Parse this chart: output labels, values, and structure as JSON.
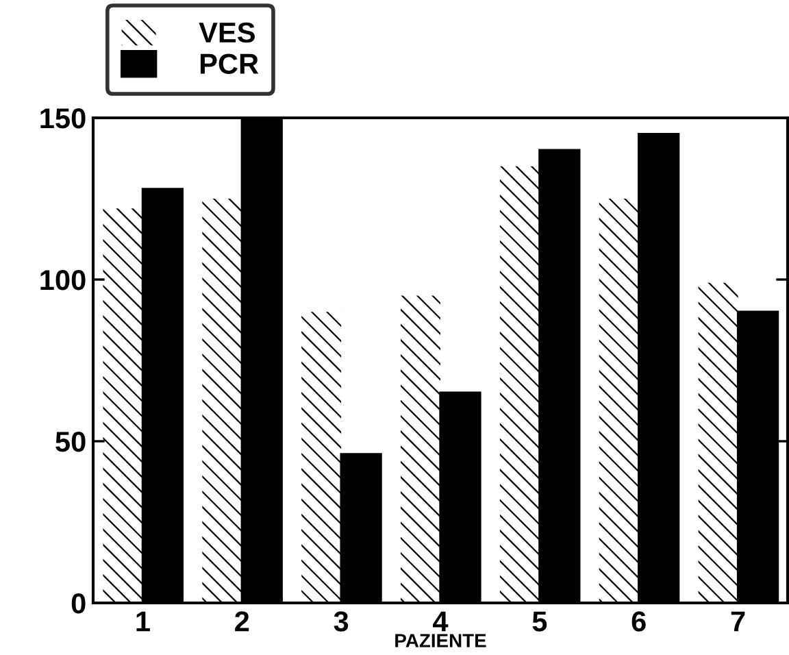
{
  "chart_data": {
    "type": "bar",
    "xlabel": "PAZIENTE",
    "categories": [
      "1",
      "2",
      "3",
      "4",
      "5",
      "6",
      "7"
    ],
    "series": [
      {
        "name": "VES",
        "color": "#ffffff",
        "values": [
          122,
          125,
          90,
          95,
          135,
          125,
          99
        ]
      },
      {
        "name": "PCR",
        "color": "#000000",
        "values": [
          128,
          150,
          46,
          65,
          140,
          145,
          90
        ]
      }
    ],
    "ylim": [
      0,
      150
    ],
    "yticks": [
      0,
      50,
      100,
      150
    ],
    "legend": "top left"
  }
}
